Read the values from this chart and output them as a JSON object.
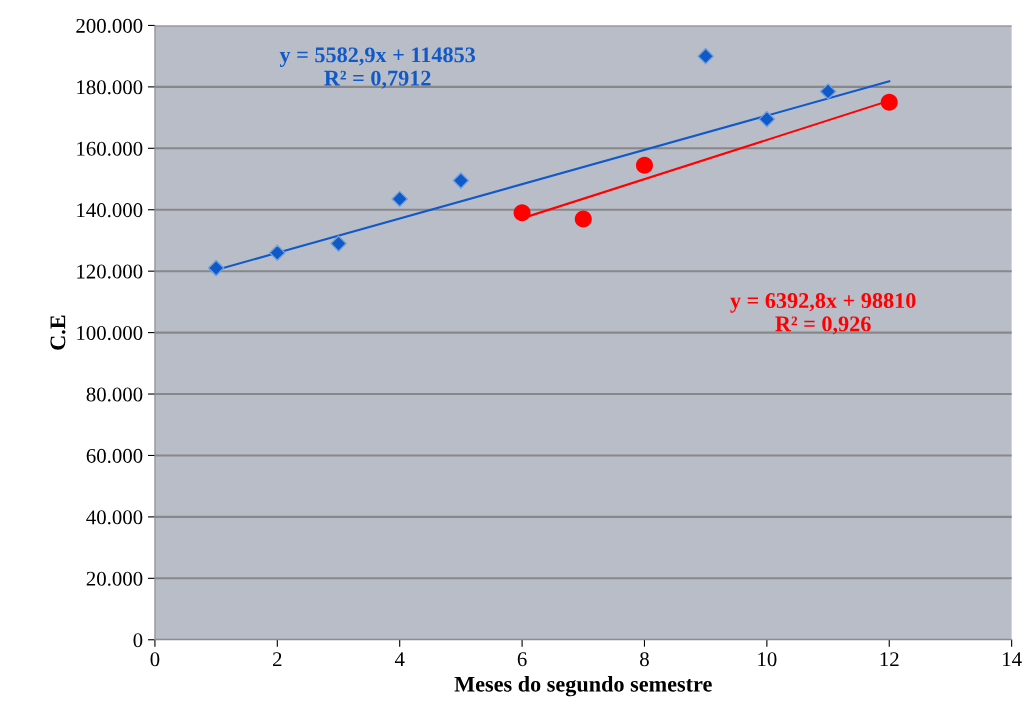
{
  "chart_data": {
    "type": "scatter",
    "xlabel": "Meses do segundo semestre",
    "ylabel": "C.E",
    "series": [
      {
        "color": "#0f5ac8",
        "marker": "diamond",
        "x": [
          1,
          2,
          3,
          4,
          5,
          9,
          10,
          11
        ],
        "values": [
          121000,
          126000,
          129000,
          143500,
          149500,
          190000,
          169500,
          178500
        ]
      },
      {
        "color": "#ff0000",
        "marker": "circle",
        "x": [
          6,
          7,
          8,
          12
        ],
        "values": [
          139000,
          137000,
          154500,
          175000
        ]
      },
      {
        "type": "line",
        "color": "#0f5ac8",
        "marker": "none",
        "x": [
          1,
          12
        ],
        "values": [
          120400,
          181800
        ]
      },
      {
        "type": "line",
        "color": "#ff0000",
        "marker": "none",
        "x": [
          6,
          12
        ],
        "values": [
          137200,
          175500
        ]
      }
    ],
    "annotations": [
      "y = 5582,9x + 114853\nR² = 0,7912",
      "y = 6392,8x + 98810\nR² = 0,926"
    ],
    "xlim": [
      0,
      14
    ],
    "xticks": [
      0,
      2,
      4,
      6,
      8,
      10,
      12,
      14
    ],
    "ylim": [
      0,
      200000
    ],
    "yticks": [
      0,
      {
        "value": 20000,
        "label": "20.000"
      },
      {
        "value": 40000,
        "label": "40.000"
      },
      {
        "value": 60000,
        "label": "60.000"
      },
      {
        "value": 80000,
        "label": "80.000"
      },
      {
        "value": 100000,
        "label": "100.000"
      },
      {
        "value": 120000,
        "label": "120.000"
      },
      {
        "value": 140000,
        "label": "140.000"
      },
      {
        "value": 160000,
        "label": "160.000"
      },
      {
        "value": 180000,
        "label": "180.000"
      },
      {
        "value": 200000,
        "label": "200.000"
      }
    ],
    "grid": "y",
    "legend": false
  }
}
